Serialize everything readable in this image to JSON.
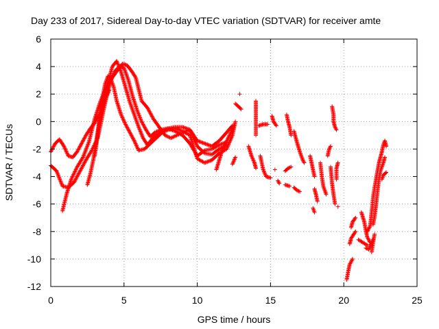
{
  "chart_data": {
    "type": "scatter",
    "title": "Day 233 of 2017, Sidereal Day-to-day VTEC variation (SDTVAR) for receiver amte",
    "xlabel": "GPS time / hours",
    "ylabel": "SDTVAR / TECUs",
    "xlim": [
      0,
      25
    ],
    "ylim": [
      -12,
      6
    ],
    "xticks": [
      0,
      5,
      10,
      15,
      20,
      25
    ],
    "yticks": [
      -12,
      -10,
      -8,
      -6,
      -4,
      -2,
      0,
      2,
      4,
      6
    ],
    "grid": true,
    "legend": "none",
    "marker": "plus",
    "series": [
      {
        "name": "SDTVAR",
        "color": "#ff0000",
        "tracks": [
          [
            [
              0.0,
              -2.2
            ],
            [
              0.3,
              -1.6
            ],
            [
              0.6,
              -1.3
            ],
            [
              0.9,
              -1.8
            ],
            [
              1.2,
              -2.5
            ],
            [
              1.5,
              -2.6
            ],
            [
              1.8,
              -2.2
            ],
            [
              2.1,
              -1.6
            ],
            [
              2.4,
              -1.0
            ],
            [
              2.7,
              -0.5
            ],
            [
              3.0,
              -0.1
            ],
            [
              3.3,
              0.5
            ],
            [
              3.6,
              1.5
            ],
            [
              3.9,
              2.8
            ],
            [
              4.2,
              4.0
            ],
            [
              4.5,
              4.4
            ],
            [
              4.8,
              3.6
            ],
            [
              5.1,
              2.5
            ],
            [
              5.4,
              1.4
            ],
            [
              5.7,
              0.5
            ],
            [
              6.0,
              -0.4
            ],
            [
              6.3,
              -1.2
            ],
            [
              6.6,
              -1.7
            ],
            [
              6.9,
              -1.3
            ],
            [
              7.2,
              -1.0
            ],
            [
              7.6,
              -0.7
            ],
            [
              8.0,
              -0.5
            ],
            [
              8.5,
              -0.4
            ],
            [
              9.0,
              -0.4
            ],
            [
              9.5,
              -0.6
            ],
            [
              10.0,
              -1.4
            ],
            [
              10.5,
              -1.6
            ],
            [
              11.0,
              -1.8
            ],
            [
              11.5,
              -1.4
            ],
            [
              12.0,
              -0.8
            ],
            [
              12.4,
              -0.3
            ]
          ],
          [
            [
              0.0,
              -3.2
            ],
            [
              0.4,
              -3.6
            ],
            [
              0.8,
              -4.7
            ],
            [
              1.2,
              -4.8
            ],
            [
              1.6,
              -4.4
            ],
            [
              2.0,
              -3.6
            ],
            [
              2.4,
              -2.8
            ],
            [
              2.8,
              -2.1
            ],
            [
              3.2,
              -1.2
            ],
            [
              3.5,
              0.3
            ],
            [
              3.8,
              1.8
            ],
            [
              4.1,
              3.0
            ],
            [
              4.4,
              3.7
            ],
            [
              4.7,
              4.0
            ],
            [
              5.0,
              3.9
            ],
            [
              5.3,
              3.0
            ],
            [
              5.6,
              1.8
            ],
            [
              5.9,
              0.8
            ],
            [
              6.2,
              0.0
            ],
            [
              6.5,
              -0.6
            ],
            [
              6.8,
              -1.1
            ],
            [
              7.1,
              -0.8
            ],
            [
              7.5,
              -0.6
            ],
            [
              8.0,
              -0.5
            ],
            [
              8.5,
              -0.7
            ],
            [
              9.0,
              -1.0
            ],
            [
              9.5,
              -1.6
            ],
            [
              10.0,
              -2.5
            ],
            [
              10.5,
              -2.1
            ],
            [
              11.0,
              -2.0
            ],
            [
              11.5,
              -1.7
            ],
            [
              12.0,
              -1.5
            ]
          ],
          [
            [
              0.8,
              -6.5
            ],
            [
              1.1,
              -5.2
            ],
            [
              1.4,
              -4.2
            ],
            [
              1.8,
              -3.3
            ],
            [
              2.2,
              -2.6
            ],
            [
              2.6,
              -1.5
            ],
            [
              3.0,
              0.2
            ],
            [
              3.4,
              1.5
            ],
            [
              3.8,
              2.5
            ],
            [
              4.2,
              3.2
            ],
            [
              4.6,
              3.8
            ],
            [
              4.9,
              4.2
            ],
            [
              5.2,
              4.1
            ],
            [
              5.5,
              3.7
            ],
            [
              5.8,
              3.2
            ],
            [
              6.2,
              1.5
            ],
            [
              6.6,
              1.0
            ],
            [
              7.0,
              0.2
            ],
            [
              7.4,
              -0.4
            ],
            [
              7.8,
              -1.0
            ],
            [
              8.2,
              -1.2
            ],
            [
              8.6,
              -1.0
            ],
            [
              9.0,
              -0.8
            ],
            [
              9.5,
              -0.6
            ],
            [
              10.0,
              -1.8
            ],
            [
              10.5,
              -2.3
            ],
            [
              11.0,
              -2.4
            ],
            [
              11.5,
              -2.0
            ],
            [
              12.0,
              -1.7
            ]
          ],
          [
            [
              2.5,
              -4.6
            ],
            [
              2.7,
              -3.8
            ],
            [
              2.9,
              -2.8
            ],
            [
              3.1,
              -1.5
            ],
            [
              3.3,
              0.0
            ],
            [
              3.5,
              1.5
            ],
            [
              3.7,
              2.7
            ],
            [
              3.9,
              3.3
            ],
            [
              4.1,
              3.1
            ],
            [
              4.3,
              2.5
            ],
            [
              4.5,
              1.5
            ],
            [
              4.8,
              0.5
            ],
            [
              5.1,
              -0.2
            ],
            [
              5.4,
              -0.8
            ],
            [
              5.7,
              -1.4
            ],
            [
              6.0,
              -2.1
            ],
            [
              6.4,
              -2.0
            ],
            [
              6.8,
              -1.6
            ],
            [
              7.2,
              -1.2
            ],
            [
              7.6,
              -0.8
            ],
            [
              8.0,
              -0.6
            ],
            [
              8.5,
              -0.5
            ],
            [
              9.0,
              -0.7
            ],
            [
              9.5,
              -1.0
            ],
            [
              10.0,
              -2.7
            ],
            [
              10.5,
              -3.0
            ],
            [
              11.0,
              -2.8
            ],
            [
              11.5,
              -2.3
            ],
            [
              12.0,
              -2.0
            ],
            [
              12.4,
              -1.0
            ],
            [
              12.6,
              0.0
            ]
          ],
          [
            [
              3.0,
              -2.5
            ],
            [
              3.2,
              -1.0
            ],
            [
              3.4,
              0.5
            ],
            [
              3.6,
              1.2
            ],
            [
              3.8,
              1.8
            ],
            [
              4.0,
              2.3
            ]
          ],
          [
            [
              11.3,
              -3.5
            ],
            [
              11.5,
              -2.8
            ],
            [
              11.7,
              -2.1
            ],
            [
              11.9,
              -1.7
            ],
            [
              12.1,
              -1.2
            ],
            [
              12.3,
              -0.8
            ],
            [
              12.5,
              -0.3
            ]
          ],
          [
            [
              12.4,
              -3.1
            ],
            [
              12.6,
              -2.6
            ]
          ],
          [
            [
              12.6,
              1.3
            ],
            [
              12.8,
              1.1
            ],
            [
              13.0,
              0.9
            ]
          ],
          [
            [
              12.9,
              2.0
            ]
          ],
          [
            [
              13.5,
              -1.8
            ],
            [
              13.7,
              -2.5
            ],
            [
              13.9,
              -3.0
            ],
            [
              14.0,
              -3.4
            ]
          ],
          [
            [
              14.0,
              1.5
            ],
            [
              14.0,
              0.7
            ],
            [
              14.0,
              -0.3
            ],
            [
              14.0,
              -1.0
            ]
          ],
          [
            [
              14.2,
              -0.3
            ],
            [
              14.5,
              -0.2
            ],
            [
              14.8,
              -0.2
            ]
          ],
          [
            [
              14.3,
              -2.5
            ],
            [
              14.5,
              -3.5
            ],
            [
              14.7,
              -4.0
            ],
            [
              15.0,
              -4.1
            ]
          ],
          [
            [
              15.1,
              0.4
            ],
            [
              15.2,
              0.0
            ],
            [
              15.4,
              -0.3
            ]
          ],
          [
            [
              15.3,
              -3.5
            ]
          ],
          [
            [
              15.5,
              -4.3
            ],
            [
              15.6,
              -4.5
            ]
          ],
          [
            [
              16.0,
              -4.6
            ],
            [
              16.3,
              -4.7
            ]
          ],
          [
            [
              16.0,
              -3.6
            ],
            [
              16.2,
              -3.4
            ],
            [
              16.4,
              -3.3
            ]
          ],
          [
            [
              16.1,
              0.5
            ],
            [
              16.2,
              0.0
            ],
            [
              16.3,
              -0.4
            ],
            [
              16.4,
              -1.0
            ]
          ],
          [
            [
              16.6,
              -0.7
            ],
            [
              16.8,
              -1.5
            ],
            [
              17.0,
              -2.2
            ],
            [
              17.2,
              -2.8
            ],
            [
              17.3,
              -3.0
            ]
          ],
          [
            [
              16.6,
              -4.8
            ],
            [
              16.8,
              -5.0
            ],
            [
              17.0,
              -5.1
            ]
          ],
          [
            [
              17.7,
              -2.5
            ],
            [
              17.8,
              -3.0
            ],
            [
              17.9,
              -3.5
            ],
            [
              18.0,
              -4.0
            ]
          ],
          [
            [
              17.9,
              -6.3
            ],
            [
              18.0,
              -6.6
            ]
          ],
          [
            [
              18.0,
              -4.9
            ],
            [
              18.1,
              -5.3
            ],
            [
              18.2,
              -5.8
            ]
          ],
          [
            [
              18.4,
              -3.0
            ],
            [
              18.5,
              -4.0
            ],
            [
              18.6,
              -4.7
            ],
            [
              18.8,
              -5.3
            ]
          ],
          [
            [
              18.9,
              -2.5
            ],
            [
              19.0,
              -2.0
            ],
            [
              19.1,
              -1.8
            ]
          ],
          [
            [
              19.2,
              1.1
            ],
            [
              19.3,
              0.5
            ],
            [
              19.3,
              0.0
            ],
            [
              19.4,
              -0.4
            ],
            [
              19.5,
              -0.6
            ]
          ],
          [
            [
              19.1,
              -3.3
            ],
            [
              19.2,
              -4.5
            ],
            [
              19.3,
              -5.3
            ],
            [
              19.4,
              -6.0
            ]
          ],
          [
            [
              19.5,
              -4.2
            ],
            [
              19.5,
              -3.4
            ],
            [
              19.6,
              -3.0
            ]
          ],
          [
            [
              19.6,
              -6.2
            ]
          ],
          [
            [
              20.2,
              -11.5
            ],
            [
              20.3,
              -10.9
            ],
            [
              20.4,
              -10.4
            ],
            [
              20.6,
              -10.0
            ]
          ],
          [
            [
              20.4,
              -8.9
            ],
            [
              20.5,
              -8.5
            ],
            [
              20.8,
              -8.0
            ]
          ],
          [
            [
              20.5,
              -7.7
            ],
            [
              20.6,
              -7.3
            ],
            [
              20.8,
              -7.0
            ]
          ],
          [
            [
              21.0,
              -8.6
            ],
            [
              21.3,
              -8.8
            ],
            [
              21.6,
              -9.0
            ]
          ],
          [
            [
              21.2,
              -6.6
            ],
            [
              21.4,
              -7.3
            ],
            [
              21.5,
              -7.9
            ],
            [
              21.6,
              -8.4
            ],
            [
              21.8,
              -8.8
            ]
          ],
          [
            [
              21.5,
              -9.2
            ],
            [
              21.7,
              -9.3
            ],
            [
              21.8,
              -9.0
            ],
            [
              22.0,
              -8.6
            ]
          ],
          [
            [
              21.6,
              -8.0
            ],
            [
              21.8,
              -7.6
            ],
            [
              21.9,
              -6.6
            ],
            [
              22.0,
              -5.5
            ],
            [
              22.1,
              -4.8
            ],
            [
              22.2,
              -4.2
            ],
            [
              22.3,
              -3.6
            ],
            [
              22.4,
              -3.0
            ],
            [
              22.5,
              -2.6
            ],
            [
              22.6,
              -2.2
            ],
            [
              22.7,
              -1.7
            ],
            [
              22.8,
              -1.4
            ],
            [
              22.9,
              -1.8
            ]
          ],
          [
            [
              22.0,
              -7.5
            ],
            [
              22.1,
              -6.9
            ],
            [
              22.2,
              -6.1
            ],
            [
              22.3,
              -5.1
            ],
            [
              22.4,
              -4.2
            ],
            [
              22.5,
              -3.6
            ],
            [
              22.6,
              -3.3
            ],
            [
              22.7,
              -3.0
            ],
            [
              22.8,
              -2.6
            ]
          ],
          [
            [
              22.6,
              -4.2
            ],
            [
              22.7,
              -3.9
            ],
            [
              22.8,
              -3.8
            ],
            [
              22.9,
              -3.7
            ]
          ],
          [
            [
              21.9,
              -9.5
            ],
            [
              22.0,
              -8.8
            ],
            [
              22.1,
              -8.2
            ]
          ]
        ]
      }
    ]
  }
}
